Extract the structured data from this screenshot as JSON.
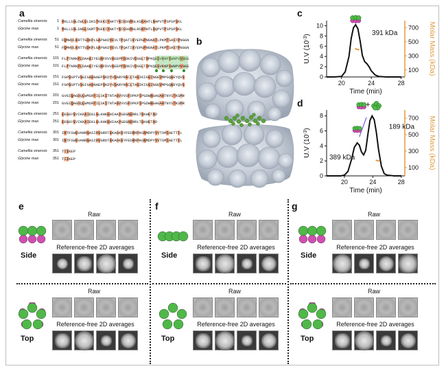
{
  "panels": {
    "a": "a",
    "b": "b",
    "c": "c",
    "d": "d",
    "e": "e",
    "f": "f",
    "g": "g"
  },
  "alignment": {
    "species_a": "Camellia sinensis",
    "species_b": "Glycine max",
    "blocks": [
      {
        "n1": "1",
        "n2": "1",
        "s1": "MKLLSGLCWLGLSKSTKEKIYAKTYNIGSGMGLKSKAHTLNAPVTPSPSPSKL",
        "s2": "MKLLSGLSNGLSGMTTKEKIYAKTYNIGSGMGLRSKPHTLDQPVTPSPSPSKL"
      },
      {
        "n1": "51",
        "n2": "51",
        "s1": "FQMHVLKRTTGDKPLGAPGKDYEVLTPQATIKYEPGPNGNATLPKMTSASTPNGGN",
        "s2": "FQMHVLKRTTGDKPLGAPGKDYEVLTPQATIKYEPGPNGNATLPKMTSASTPNGGN"
      },
      {
        "n1": "101",
        "n2": "101",
        "s1": "FLPTNRKPLDAAKIYESNFDVVAEEPPSDKIVDGGLTDPKQESVKNPIWNPVVGGE",
        "s2": "FLPTNRKPLDAAKIYESNFDVVAEEPPSDKIVDGGLTDPKQESVKNPIWNPVVGGE"
      },
      {
        "n1": "151",
        "n2": "151",
        "s1": "FGPGGPTVGGIGAGNAEPSKDYVSARYRACLTAGIKIGGINGEVMPGQWEYQVG",
        "s2": "FGPGGPTVGGIGAGNAEPSKDYVSARYRACLTAGIKIGGINGEVMPGQWEYQVG"
      },
      {
        "n1": "201",
        "n2": "201",
        "s1": "GVGIQAGDQLWMSRYILSKITNTAGVVVSFDPKPIPGDWNGAGAHTNYSTKSMR",
        "s2": "GVGIQAGDQLWMSRYILSKITNTAGVVVSFDPKPIPGDWNGAGAHTNYSTKSMR"
      },
      {
        "n1": "251",
        "n2": "251",
        "s1": "EEGGYEVIKKAIEKLGLKHKEHIAAYGEGNERRLTGKHETAD",
        "s2": "EEGGYEVIKKAIEKLGLKHKEHIAAYGEGNERRLTGKHETAD"
      },
      {
        "n1": "301",
        "n2": "301",
        "s1": "INTFSWGVANRGASIRVGRDTEKAGKGYFEDRRPASNMDPYVVTSMIAETTIL",
        "s2": "INTFSWGVANRGASIRVGRDTEKAGKGYFEDRRPASNMDPYVVTSMIAETTIL"
      },
      {
        "n1": "351",
        "n2": "351",
        "s1": "TIIKEP",
        "s2": "TIIKEP"
      }
    ]
  },
  "chart_data": [
    {
      "type": "line",
      "panel": "c",
      "x": [
        18,
        19,
        20,
        20.5,
        21,
        21.3,
        21.6,
        21.9,
        22.2,
        22.5,
        22.8,
        23.1,
        23.4,
        23.7,
        24,
        24.5,
        25,
        26,
        27,
        28
      ],
      "y": [
        0,
        0,
        0.1,
        1,
        4,
        7.5,
        9.6,
        10.2,
        9.4,
        7,
        4.2,
        3,
        2.6,
        2,
        1.2,
        0.4,
        0.1,
        0,
        0,
        0
      ],
      "mass_segment_x": [
        21.8,
        22.4
      ],
      "mass_segment_mass": [
        400,
        385
      ],
      "xlim": [
        18,
        28.5
      ],
      "ylim": [
        0,
        11
      ],
      "xticks": [
        "20",
        "24",
        "28"
      ],
      "yticks": [
        "0",
        "2",
        "4",
        "6",
        "8",
        "10"
      ],
      "y2ticks": [
        "100",
        "300",
        "500",
        "700"
      ],
      "y2lim": [
        0,
        800
      ],
      "xlabel": "Time (min)",
      "ylabel": "U.V (10",
      "ylabel_sup": "-3",
      "ylabel_end": ")",
      "y2label": "Molar Mass (kDa)",
      "annotation": "391 kDa"
    },
    {
      "type": "line",
      "panel": "d",
      "x": [
        17.5,
        18.5,
        19.5,
        20,
        20.5,
        21,
        21.4,
        21.8,
        22.1,
        22.4,
        22.7,
        23,
        23.3,
        23.6,
        23.9,
        24.2,
        24.5,
        24.8,
        25.2,
        25.6,
        26,
        27,
        28
      ],
      "y": [
        0,
        0,
        0,
        0.1,
        0.6,
        2.2,
        3.8,
        4.4,
        4.1,
        3.2,
        2.8,
        3.4,
        5.5,
        7.4,
        8,
        7.5,
        5.8,
        3.5,
        1.3,
        0.3,
        0.1,
        0,
        0
      ],
      "mass_segment_x": [
        24.4,
        24.9
      ],
      "mass_segment_mass": [
        190,
        180
      ],
      "xlim": [
        17.5,
        28.5
      ],
      "ylim": [
        0,
        8.8
      ],
      "xticks": [
        "20",
        "24",
        "28"
      ],
      "yticks": [
        "0",
        "2",
        "4",
        "6",
        "8"
      ],
      "y2ticks": [
        "100",
        "300",
        "500",
        "700"
      ],
      "y2lim": [
        0,
        800
      ],
      "xlabel": "Time (min)",
      "ylabel": "U.V (10",
      "ylabel_sup": "-3",
      "ylabel_end": ")",
      "y2label": "Molar Mass (kDa)",
      "annotations": [
        "389 kDa",
        "189 kDa",
        "+"
      ]
    }
  ],
  "em": {
    "raw_label": "Raw",
    "avg_label": "Reference-free 2D averages",
    "side_label": "Side",
    "top_label": "Top"
  },
  "colors": {
    "salmon": "#f0a07a",
    "green": "#4fb848",
    "magenta": "#d04fb0",
    "purple": "#7a5ad0",
    "orange_axis": "#e09a3a"
  }
}
